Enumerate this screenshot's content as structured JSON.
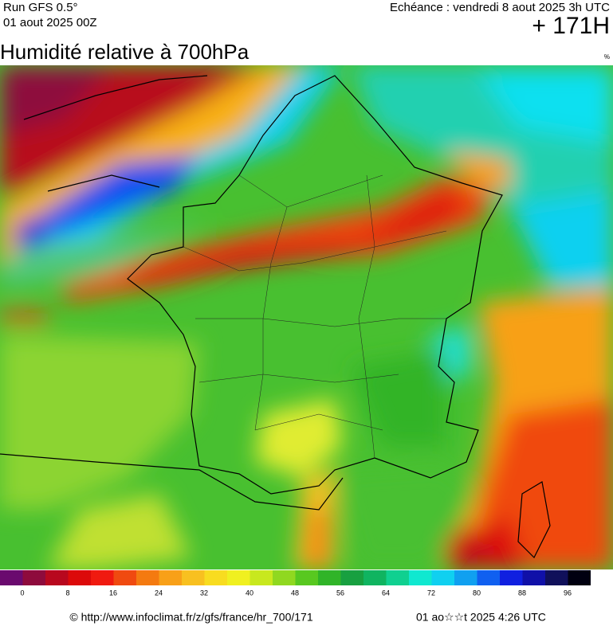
{
  "header": {
    "run": "Run GFS 0.5°",
    "run_date": "01 aout 2025 00Z",
    "forecast": "Echéance : vendredi 8 aout 2025 3h UTC",
    "lead": "+ 171H"
  },
  "title": "Humidité relative à 700hPa",
  "unit": "%",
  "legend": {
    "ticks": [
      0,
      8,
      16,
      24,
      32,
      40,
      48,
      56,
      64,
      72,
      80,
      88,
      96
    ],
    "colors": [
      "#6a0a6e",
      "#8e0b3c",
      "#b8081e",
      "#dc0a0a",
      "#f01a10",
      "#f04a10",
      "#f47a10",
      "#f8a018",
      "#f8c020",
      "#f8dc20",
      "#f0f020",
      "#c8e81e",
      "#90d820",
      "#58c820",
      "#30b428",
      "#18a040",
      "#10b460",
      "#10d090",
      "#10e8d0",
      "#10d0f0",
      "#10a0f0",
      "#1060f0",
      "#1020e0",
      "#1010a8",
      "#10105a",
      "#000010"
    ]
  },
  "footer": {
    "url": "© http://www.infoclimat.fr/z/gfs/france/hr_700/171",
    "stamp": "01 ao☆☆t 2025  4:26 UTC"
  }
}
